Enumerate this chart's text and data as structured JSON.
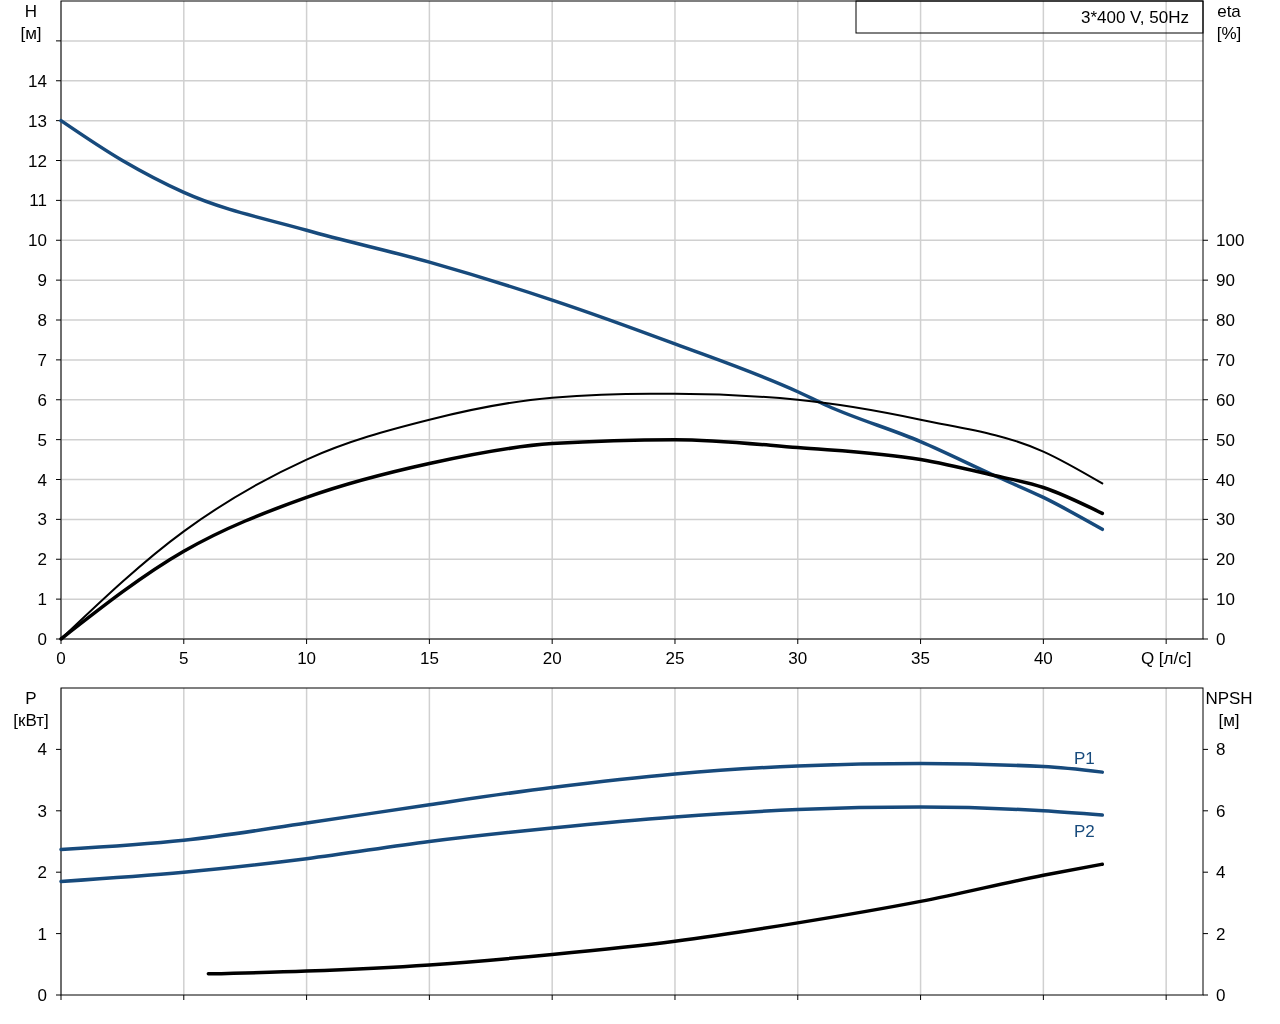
{
  "chart_data": [
    {
      "type": "line",
      "title": "3*400 V, 50Hz",
      "xlabel": "Q [л/с]",
      "ylabel": "H [м]",
      "y2label": "eta [%]",
      "xlim": [
        0,
        46.5
      ],
      "xticks": [
        0,
        5,
        10,
        15,
        20,
        25,
        30,
        35,
        40,
        {
          "value": 45,
          "label": null
        }
      ],
      "ylim": [
        0,
        16
      ],
      "yticks": [
        0,
        1,
        2,
        3,
        4,
        5,
        6,
        7,
        8,
        9,
        10,
        11,
        12,
        13,
        14,
        {
          "value": 15,
          "label": null
        }
      ],
      "y2lim": [
        0,
        160
      ],
      "y2ticks": [
        0,
        10,
        20,
        30,
        40,
        50,
        60,
        70,
        80,
        90,
        100
      ],
      "grid": true,
      "series": [
        {
          "color": "#174a7c",
          "x": [
            0,
            2.5,
            5,
            10,
            15,
            20,
            25,
            30,
            31.2,
            35,
            38,
            40,
            42.4
          ],
          "values": [
            13,
            12,
            11.2,
            10.25,
            9.45,
            8.5,
            7.4,
            6.2,
            5.85,
            4.95,
            4.1,
            3.55,
            2.75
          ]
        },
        {
          "color": "#000000",
          "axis": "y2",
          "x": [
            0,
            5,
            10,
            15,
            20,
            24,
            25,
            30,
            35,
            40,
            42.4
          ],
          "values": [
            0,
            27,
            45,
            55,
            60.5,
            61.5,
            61.5,
            60,
            55,
            47,
            39
          ]
        },
        {
          "color": "#000000",
          "axis": "y2",
          "x": [
            0,
            5,
            10,
            15,
            20,
            25,
            30,
            35,
            38,
            40,
            42.4
          ],
          "values": [
            0,
            22,
            35.5,
            44,
            49,
            50,
            48,
            45,
            41,
            38,
            31.5
          ]
        }
      ]
    },
    {
      "type": "line",
      "ylabel": "P [кВт]",
      "y2label": "NPSH [м]",
      "xlim": [
        0,
        46.5
      ],
      "xticks": [
        0,
        5,
        10,
        15,
        20,
        25,
        30,
        35,
        40,
        45
      ],
      "tick_labels": "y",
      "ylim": [
        0,
        5
      ],
      "yticks": [
        0,
        1,
        2,
        3,
        4
      ],
      "y2lim": [
        0,
        10
      ],
      "y2ticks": [
        0,
        2,
        4,
        6,
        8
      ],
      "grid": "x",
      "series": [
        {
          "name": "P1",
          "color": "#174a7c",
          "x": [
            0,
            5,
            10,
            15,
            20,
            25,
            30,
            35,
            40,
            42.4
          ],
          "values": [
            2.37,
            2.52,
            2.8,
            3.1,
            3.38,
            3.6,
            3.73,
            3.77,
            3.72,
            3.63
          ]
        },
        {
          "name": "P2",
          "color": "#174a7c",
          "x": [
            0,
            5,
            10,
            15,
            20,
            25,
            30,
            35,
            40,
            42.4
          ],
          "values": [
            1.85,
            2.0,
            2.22,
            2.5,
            2.72,
            2.9,
            3.02,
            3.06,
            3.0,
            2.93
          ]
        },
        {
          "color": "#000000",
          "axis": "y2",
          "x": [
            6,
            10,
            15,
            20,
            25,
            30,
            35,
            40,
            42.4
          ],
          "values": [
            0.69,
            0.78,
            0.98,
            1.32,
            1.75,
            2.35,
            3.05,
            3.9,
            4.26
          ]
        }
      ]
    }
  ]
}
